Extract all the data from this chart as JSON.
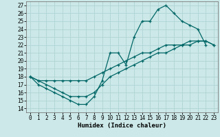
{
  "xlabel": "Humidex (Indice chaleur)",
  "bg_color": "#cce8e8",
  "grid_color": "#b0d4d4",
  "line_color": "#006666",
  "xlim": [
    -0.5,
    23.5
  ],
  "ylim": [
    13.5,
    27.5
  ],
  "xticks": [
    0,
    1,
    2,
    3,
    4,
    5,
    6,
    7,
    8,
    9,
    10,
    11,
    12,
    13,
    14,
    15,
    16,
    17,
    18,
    19,
    20,
    21,
    22,
    23
  ],
  "yticks": [
    14,
    15,
    16,
    17,
    18,
    19,
    20,
    21,
    22,
    23,
    24,
    25,
    26,
    27
  ],
  "line1_x": [
    0,
    1,
    2,
    3,
    4,
    5,
    6,
    7,
    8,
    9,
    10,
    11,
    12,
    13,
    14,
    15,
    16,
    17,
    18,
    19,
    20,
    21,
    22
  ],
  "line1_y": [
    18,
    17,
    16.5,
    16,
    15.5,
    15,
    14.5,
    14.5,
    15.5,
    17.5,
    21,
    21,
    19.5,
    23,
    25,
    25,
    26.5,
    27,
    26,
    25,
    24.5,
    24,
    22
  ],
  "line2_x": [
    0,
    1,
    2,
    3,
    4,
    5,
    6,
    7,
    8,
    9,
    10,
    11,
    12,
    13,
    14,
    15,
    16,
    17,
    18,
    19,
    20,
    21,
    22,
    23
  ],
  "line2_y": [
    18,
    17.5,
    17,
    16.5,
    16,
    15.5,
    15.5,
    15.5,
    16,
    17,
    18,
    18.5,
    19,
    19.5,
    20,
    20.5,
    21,
    21,
    21.5,
    22,
    22,
    22.5,
    22.5,
    22
  ],
  "line3_x": [
    0,
    1,
    2,
    3,
    4,
    5,
    6,
    7,
    8,
    9,
    10,
    11,
    12,
    13,
    14,
    15,
    16,
    17,
    18,
    19,
    20,
    21,
    22,
    23
  ],
  "line3_y": [
    18,
    17.5,
    17.5,
    17.5,
    17.5,
    17.5,
    17.5,
    17.5,
    18,
    18.5,
    19,
    19.5,
    20,
    20.5,
    21,
    21,
    21.5,
    22,
    22,
    22,
    22.5,
    22.5,
    22.5,
    22
  ],
  "tick_fontsize": 5.5,
  "xlabel_fontsize": 6.5
}
